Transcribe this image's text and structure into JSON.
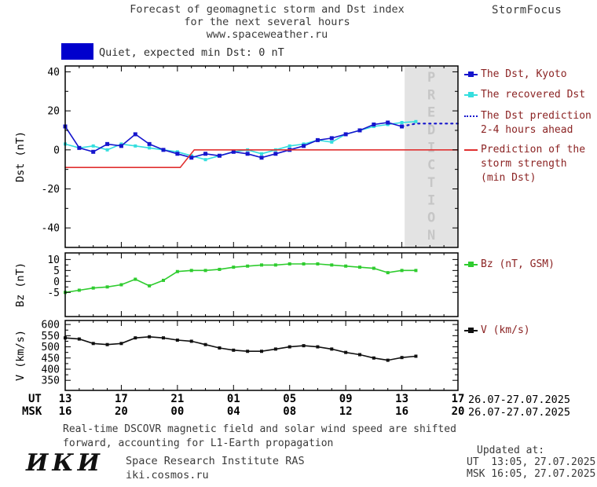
{
  "header": {
    "title_lines": [
      "Forecast of geomagnetic storm and Dst index",
      "for the next several hours",
      "www.spaceweather.ru"
    ],
    "brand": "StormFocus"
  },
  "status": {
    "text": "Quiet, expected min Dst: 0 nT",
    "swatch_color": "#0000cd"
  },
  "legend": {
    "items": [
      {
        "key": "dst-kyoto",
        "label_lines": [
          "The Dst, Kyoto"
        ],
        "color": "#1515cd",
        "style": "solid-square"
      },
      {
        "key": "recovered-dst",
        "label_lines": [
          "The recovered Dst"
        ],
        "color": "#35dede",
        "style": "solid-square"
      },
      {
        "key": "dst-prediction",
        "label_lines": [
          "The Dst prediction",
          "2-4 hours ahead"
        ],
        "color": "#1515cd",
        "style": "dotted"
      },
      {
        "key": "storm-strength",
        "label_lines": [
          "Prediction of the",
          "storm strength",
          "(min Dst)"
        ],
        "color": "#e03030",
        "style": "solid"
      },
      {
        "key": "bz",
        "label_lines": [
          "Bz (nT, GSM)"
        ],
        "color": "#2fcc2f",
        "style": "solid-square"
      },
      {
        "key": "v",
        "label_lines": [
          "V (km/s)"
        ],
        "color": "#101010",
        "style": "solid-square"
      }
    ]
  },
  "chart_data": {
    "type": "line",
    "title": "Forecast of geomagnetic storm and Dst index for the next several hours",
    "x_axis": {
      "unit": "hours since 26.07.2025 13:00 UT",
      "xlim": [
        0,
        28
      ],
      "tick_positions": [
        0,
        4,
        8,
        12,
        16,
        20,
        24,
        28
      ],
      "tick_labels_ut": [
        "13",
        "17",
        "21",
        "01",
        "05",
        "09",
        "13",
        "17"
      ],
      "tick_labels_msk": [
        "16",
        "20",
        "00",
        "04",
        "08",
        "12",
        "16",
        "20"
      ]
    },
    "panels": [
      {
        "id": "dst",
        "ylabel": "Dst (nT)",
        "ylim": [
          -50,
          43
        ],
        "yticks": [
          -40,
          -20,
          0,
          20,
          40
        ],
        "prediction_band": {
          "x_start": 24.2,
          "x_end": 28,
          "label": "PREDICTION",
          "fill": "#e3e3e3",
          "text_color": "#c6c6c6"
        },
        "series": [
          {
            "key": "recovered-dst",
            "name": "The recovered Dst",
            "color": "#35dede",
            "marker": 4,
            "dash": null,
            "x": [
              0,
              1,
              2,
              3,
              4,
              5,
              6,
              7,
              8,
              9,
              10,
              11,
              12,
              13,
              14,
              15,
              16,
              17,
              18,
              19,
              20,
              21,
              22,
              23,
              24,
              25
            ],
            "y": [
              3,
              1,
              2,
              0,
              3,
              2,
              1,
              0,
              -1,
              -3,
              -5,
              -3,
              -1,
              0,
              -2,
              0,
              2,
              3,
              5,
              4,
              8,
              10,
              12,
              13,
              14,
              14.5
            ]
          },
          {
            "key": "dst-kyoto",
            "name": "The Dst, Kyoto",
            "color": "#1515cd",
            "marker": 5,
            "dash": null,
            "x": [
              0,
              1,
              2,
              3,
              4,
              5,
              6,
              7,
              8,
              9,
              10,
              11,
              12,
              13,
              14,
              15,
              16,
              17,
              18,
              19,
              20,
              21,
              22,
              23,
              24
            ],
            "y": [
              12,
              1,
              -1,
              3,
              2,
              8,
              3,
              0,
              -2,
              -4,
              -2,
              -3,
              -1,
              -2,
              -4,
              -2,
              0,
              2,
              5,
              6,
              8,
              10,
              13,
              14,
              12
            ]
          },
          {
            "key": "dst-prediction",
            "name": "The Dst prediction 2-4 hours ahead",
            "color": "#1515cd",
            "marker": 0,
            "dash": "2 5",
            "x": [
              24,
              25,
              26,
              27,
              28
            ],
            "y": [
              12,
              13.5,
              13.5,
              13.5,
              13.5
            ]
          },
          {
            "key": "storm-strength",
            "name": "Prediction of the storm strength (min Dst)",
            "color": "#e03030",
            "marker": 0,
            "dash": null,
            "x": [
              0,
              8.2,
              9.2,
              28
            ],
            "y": [
              -9,
              -9,
              0,
              0
            ]
          }
        ]
      },
      {
        "id": "bz",
        "ylabel": "Bz (nT)",
        "ylim": [
          -16,
          13
        ],
        "yticks": [
          -5,
          0,
          5,
          10
        ],
        "series": [
          {
            "key": "bz",
            "name": "Bz (nT, GSM)",
            "color": "#2fcc2f",
            "marker": 4,
            "dash": null,
            "x": [
              0,
              1,
              2,
              3,
              4,
              5,
              6,
              7,
              8,
              9,
              10,
              11,
              12,
              13,
              14,
              15,
              16,
              17,
              18,
              19,
              20,
              21,
              22,
              23,
              24,
              25
            ],
            "y": [
              -5,
              -4,
              -3,
              -2.5,
              -1.5,
              1,
              -2,
              0.5,
              4.5,
              5,
              5,
              5.5,
              6.5,
              7,
              7.5,
              7.5,
              8,
              8,
              8,
              7.5,
              7,
              6.5,
              6,
              4,
              5,
              5
            ]
          }
        ]
      },
      {
        "id": "v",
        "ylabel": "V (km/s)",
        "ylim": [
          305,
          618
        ],
        "yticks": [
          350,
          400,
          450,
          500,
          550,
          600
        ],
        "series": [
          {
            "key": "v",
            "name": "V (km/s)",
            "color": "#101010",
            "marker": 4,
            "dash": null,
            "x": [
              0,
              1,
              2,
              3,
              4,
              5,
              6,
              7,
              8,
              9,
              10,
              11,
              12,
              13,
              14,
              15,
              16,
              17,
              18,
              19,
              20,
              21,
              22,
              23,
              24,
              25
            ],
            "y": [
              540,
              535,
              515,
              510,
              515,
              540,
              545,
              540,
              530,
              525,
              510,
              495,
              485,
              480,
              480,
              490,
              500,
              505,
              500,
              490,
              475,
              465,
              450,
              440,
              452,
              458
            ]
          }
        ]
      }
    ]
  },
  "xaxis": {
    "ut_label": "UT",
    "msk_label": "MSK",
    "date_range_ut": "26.07-27.07.2025",
    "date_range_msk": "26.07-27.07.2025"
  },
  "footer": {
    "annotation_lines": [
      "Real-time DSCOVR magnetic field and solar wind speed are shifted",
      "forward, accounting for L1-Earth propagation"
    ],
    "institute_logo": "ИКИ",
    "institute_name": "Space Research Institute RAS",
    "institute_site": "iki.cosmos.ru",
    "updated_label": "Updated at:",
    "updated_ut": "UT  13:05, 27.07.2025",
    "updated_msk": "MSK 16:05, 27.07.2025"
  }
}
